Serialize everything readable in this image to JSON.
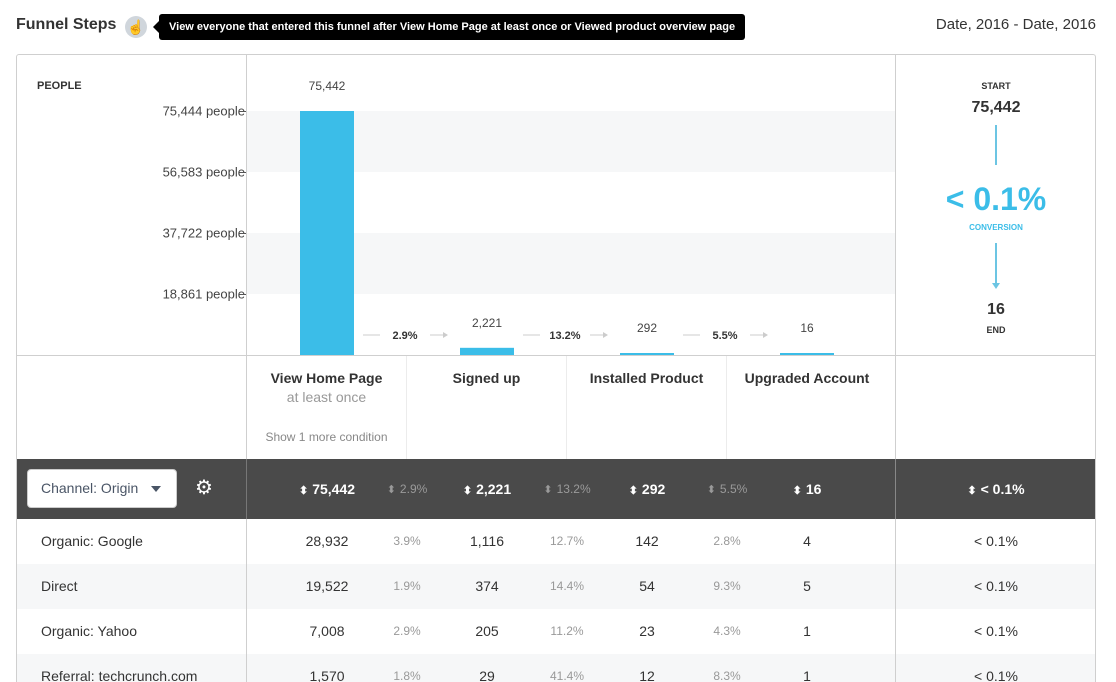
{
  "header": {
    "title": "Funnel Steps",
    "help_icon": "hand-pointer-icon",
    "tooltip": "View everyone that entered this funnel after View Home Page at least once or Viewed product overview page",
    "date_range": "Date, 2016 - Date, 2016"
  },
  "chart_data": {
    "type": "bar",
    "title": "",
    "ylabel": "PEOPLE",
    "ylim": [
      0,
      75444
    ],
    "yticks": [
      {
        "value": 75444,
        "label": "75,444 people"
      },
      {
        "value": 56583,
        "label": "56,583 people"
      },
      {
        "value": 37722,
        "label": "37,722 people"
      },
      {
        "value": 18861,
        "label": "18,861 people"
      }
    ],
    "categories": [
      "View Home Page",
      "Signed up",
      "Installed Product",
      "Upgraded Account"
    ],
    "values": [
      75442,
      2221,
      292,
      16
    ],
    "value_labels": [
      "75,442",
      "2,221",
      "292",
      "16"
    ],
    "step_conversions": [
      "2.9%",
      "13.2%",
      "5.5%"
    ],
    "bar_color": "#3bbde8",
    "grid": "alternating bands"
  },
  "summary": {
    "start_label": "START",
    "start_value": "75,442",
    "conversion": "< 0.1%",
    "conversion_label": "CONVERSION",
    "end_value": "16",
    "end_label": "END",
    "accent_color": "#3bbde8"
  },
  "steps": [
    {
      "name": "View Home Page",
      "sub": "at least once",
      "more": "Show 1 more condition"
    },
    {
      "name": "Signed up"
    },
    {
      "name": "Installed Product"
    },
    {
      "name": "Upgraded Account"
    }
  ],
  "table": {
    "group_select": "Channel: Origin",
    "settings_icon": "gear-icon",
    "totals": [
      "75,442",
      "2.9%",
      "2,221",
      "13.2%",
      "292",
      "5.5%",
      "16",
      "< 0.1%"
    ],
    "rows": [
      {
        "name": "Organic: Google",
        "cells": [
          "28,932",
          "3.9%",
          "1,116",
          "12.7%",
          "142",
          "2.8%",
          "4",
          "< 0.1%"
        ]
      },
      {
        "name": "Direct",
        "cells": [
          "19,522",
          "1.9%",
          "374",
          "14.4%",
          "54",
          "9.3%",
          "5",
          "< 0.1%"
        ]
      },
      {
        "name": "Organic: Yahoo",
        "cells": [
          "7,008",
          "2.9%",
          "205",
          "11.2%",
          "23",
          "4.3%",
          "1",
          "< 0.1%"
        ]
      },
      {
        "name": "Referral: techcrunch.com",
        "cells": [
          "1,570",
          "1.8%",
          "29",
          "41.4%",
          "12",
          "8.3%",
          "1",
          "< 0.1%"
        ]
      }
    ]
  }
}
